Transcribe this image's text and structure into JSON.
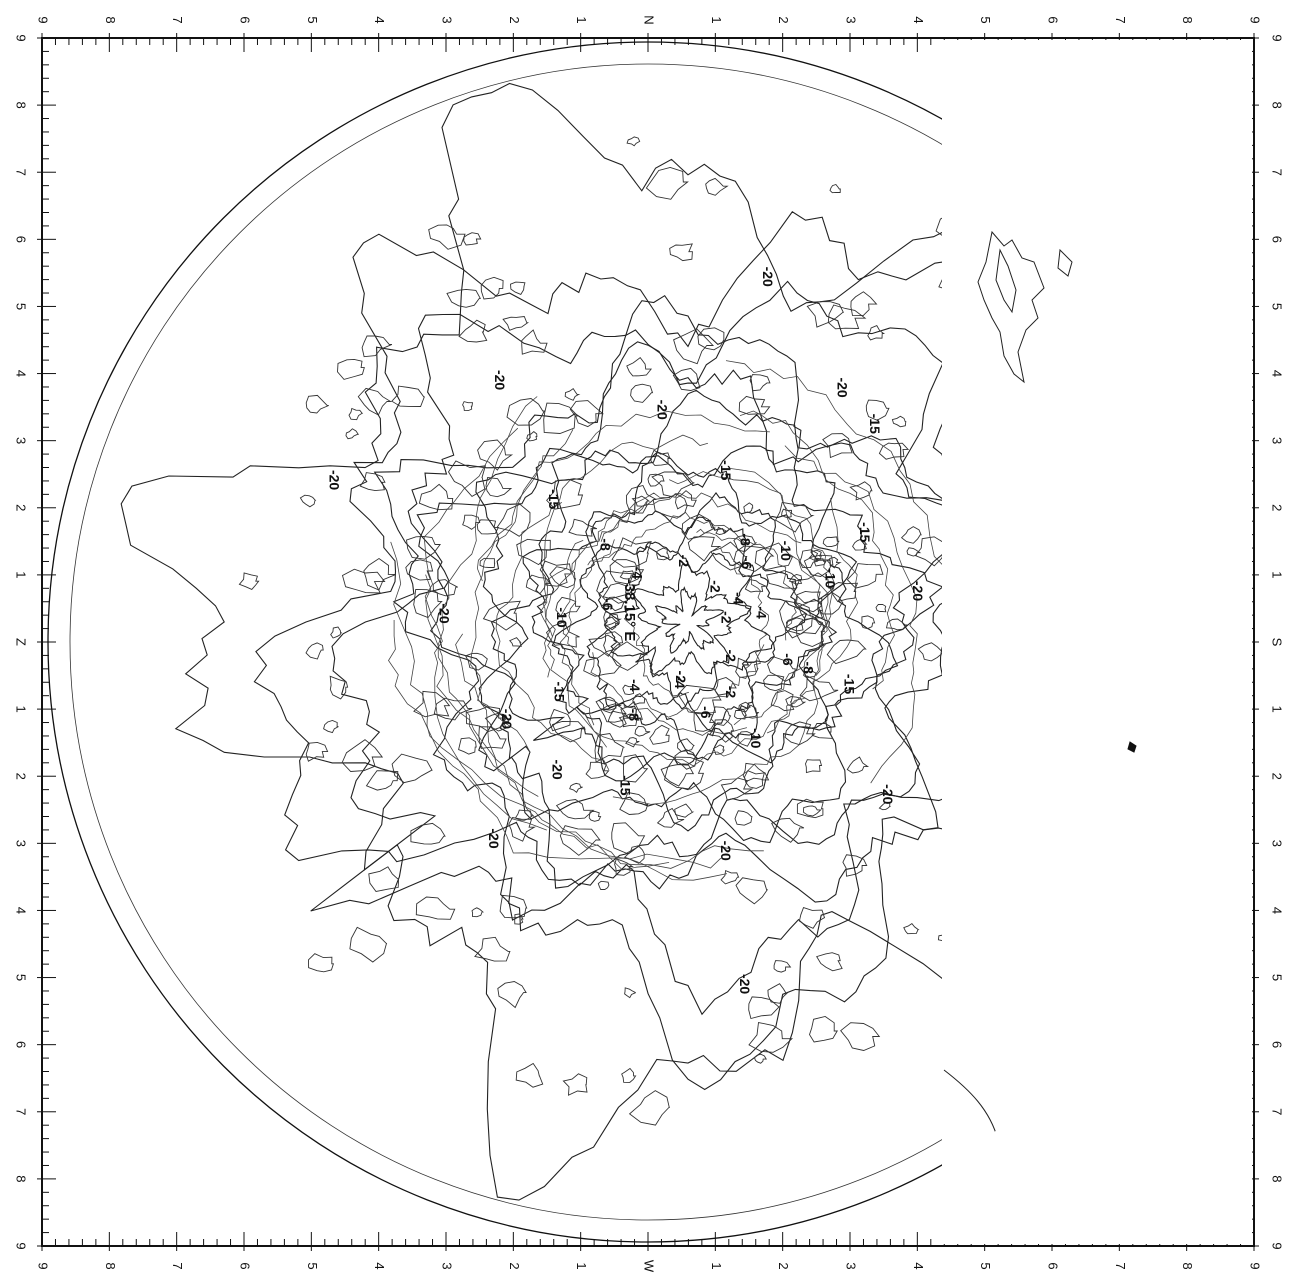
{
  "map": {
    "projection": "polar stereographic",
    "orientation": "rotated 90 degrees clockwise",
    "frame": {
      "border_color": "#111111"
    },
    "top_ticks": [
      "9",
      "8",
      "7",
      "6",
      "5",
      "4",
      "3",
      "2",
      "1",
      "N",
      "1",
      "2",
      "3",
      "4",
      "5",
      "6",
      "7",
      "8",
      "9"
    ],
    "bottom_ticks": [
      "9",
      "8",
      "7",
      "6",
      "5",
      "4",
      "3",
      "2",
      "1",
      "W",
      "1",
      "2",
      "3",
      "4",
      "5",
      "6",
      "7",
      "8",
      "9"
    ],
    "left_ticks": [
      "9",
      "8",
      "7",
      "6",
      "5",
      "4",
      "3",
      "2",
      "1",
      "Z",
      "1",
      "2",
      "3",
      "4",
      "5",
      "6",
      "7",
      "8",
      "9"
    ],
    "right_ticks": [
      "9",
      "8",
      "7",
      "6",
      "5",
      "4",
      "3",
      "2",
      "1",
      "S",
      "1",
      "2",
      "3",
      "4",
      "5",
      "6",
      "7",
      "8",
      "9"
    ],
    "center_label": "-38.15° E",
    "contour_levels": [
      "-2",
      "-4",
      "-6",
      "-8",
      "-10",
      "-15",
      "-20"
    ],
    "contour_labels": [
      {
        "text": "-2",
        "lat": 78,
        "lon": 30
      },
      {
        "text": "-2",
        "lat": 72,
        "lon": 80
      },
      {
        "text": "-2",
        "lat": 75,
        "lon": -20
      },
      {
        "text": "-2",
        "lat": 68,
        "lon": -60
      },
      {
        "text": "-2",
        "lat": 62,
        "lon": 100
      },
      {
        "text": "-2",
        "lat": 70,
        "lon": 140
      },
      {
        "text": "-4",
        "lat": 68,
        "lon": 140
      },
      {
        "text": "-4",
        "lat": 66,
        "lon": 30
      },
      {
        "text": "-4",
        "lat": 64,
        "lon": -100
      },
      {
        "text": "-4",
        "lat": 60,
        "lon": 170
      },
      {
        "text": "-6",
        "lat": 60,
        "lon": -130
      },
      {
        "text": "-6",
        "lat": 58,
        "lon": 120
      },
      {
        "text": "-6",
        "lat": 55,
        "lon": 60
      },
      {
        "text": "-8",
        "lat": 52,
        "lon": 160
      },
      {
        "text": "-8",
        "lat": 50,
        "lon": -100
      },
      {
        "text": "-8",
        "lat": 48,
        "lon": 60
      },
      {
        "text": "-10",
        "lat": 46,
        "lon": -140
      },
      {
        "text": "-10",
        "lat": 45,
        "lon": 100
      },
      {
        "text": "-10",
        "lat": 42,
        "lon": 20
      },
      {
        "text": "-15",
        "lat": 38,
        "lon": -40
      },
      {
        "text": "-15",
        "lat": 35,
        "lon": 60
      },
      {
        "text": "-15",
        "lat": 32,
        "lon": 150
      },
      {
        "text": "-15",
        "lat": 30,
        "lon": -100
      },
      {
        "text": "-15",
        "lat": 28,
        "lon": 10
      },
      {
        "text": "-20",
        "lat": 22,
        "lon": -60
      },
      {
        "text": "-20",
        "lat": 20,
        "lon": 30
      },
      {
        "text": "-20",
        "lat": 18,
        "lon": 120
      },
      {
        "text": "-20",
        "lat": 15,
        "lon": -140
      },
      {
        "text": "-20",
        "lat": 12,
        "lon": 80
      },
      {
        "text": "-20",
        "lat": 8,
        "lon": -20
      },
      {
        "text": "-20",
        "lat": 5,
        "lon": 170
      },
      {
        "text": "-20",
        "lat": 2,
        "lon": -90
      },
      {
        "text": "-20",
        "lat": -2,
        "lon": 40
      },
      {
        "text": "-20",
        "lat": -6,
        "lon": -40
      },
      {
        "text": "-20",
        "lat": -8,
        "lon": 120
      },
      {
        "text": "-20",
        "lat": -10,
        "lon": -120
      },
      {
        "text": "-15",
        "lat": 10,
        "lon": -10
      },
      {
        "text": "-15",
        "lat": 4,
        "lon": 60
      },
      {
        "text": "-20",
        "lat": -4,
        "lon": 0
      },
      {
        "text": "-20",
        "lat": 26,
        "lon": 170
      },
      {
        "text": "-20",
        "lat": 24,
        "lon": -170
      },
      {
        "text": "-15",
        "lat": 40,
        "lon": -170
      },
      {
        "text": "-10",
        "lat": 50,
        "lon": 0
      },
      {
        "text": "-8",
        "lat": 56,
        "lon": -20
      },
      {
        "text": "-6",
        "lat": 62,
        "lon": -10
      },
      {
        "text": "-4",
        "lat": 72,
        "lon": 10
      }
    ]
  }
}
